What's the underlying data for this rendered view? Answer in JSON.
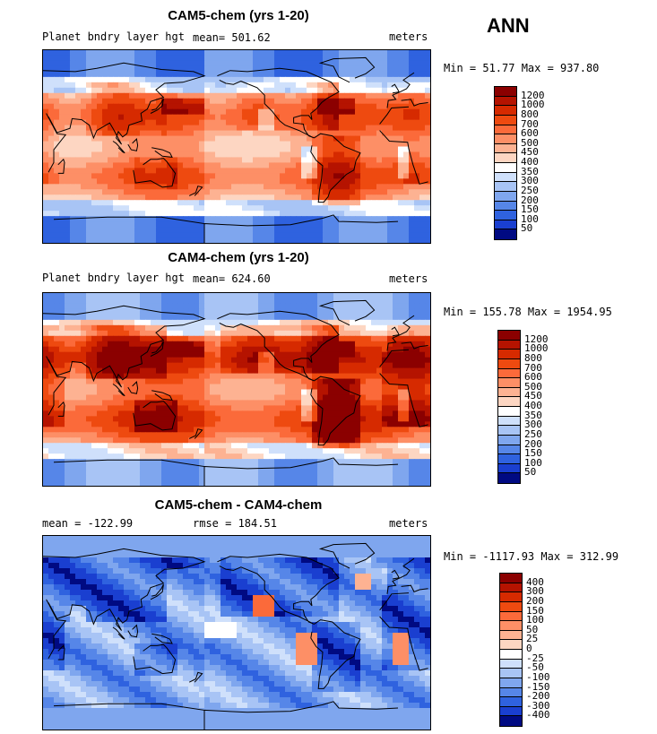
{
  "season": "ANN",
  "panels": [
    {
      "title": "CAM5-chem (yrs 1-20)",
      "left_label": "Planet bndry layer hgt",
      "mean_text": "mean= 501.62",
      "units": "meters",
      "minmax": "Min =  51.77 Max = 937.80",
      "scheme": "pos",
      "colorbar": {
        "labels": [
          "1200",
          "1000",
          "800",
          "700",
          "600",
          "500",
          "450",
          "400",
          "350",
          "300",
          "250",
          "200",
          "150",
          "100",
          "50"
        ],
        "colors": [
          "#8b0000",
          "#b51300",
          "#d62a00",
          "#ee4a10",
          "#fb6a3a",
          "#fd8f66",
          "#fdb292",
          "#fdd6c2",
          "#ffffff",
          "#cfe0fb",
          "#a8c4f5",
          "#7fa6ee",
          "#5686e8",
          "#2f62df",
          "#1a3fd0",
          "#000a82"
        ]
      }
    },
    {
      "title": "CAM4-chem (yrs 1-20)",
      "left_label": "Planet bndry layer hgt",
      "mean_text": "mean= 624.60",
      "units": "meters",
      "minmax": "Min = 155.78 Max = 1954.95",
      "scheme": "pos",
      "colorbar": {
        "labels": [
          "1200",
          "1000",
          "800",
          "700",
          "600",
          "500",
          "450",
          "400",
          "350",
          "300",
          "250",
          "200",
          "150",
          "100",
          "50"
        ],
        "colors": [
          "#8b0000",
          "#b51300",
          "#d62a00",
          "#ee4a10",
          "#fb6a3a",
          "#fd8f66",
          "#fdb292",
          "#fdd6c2",
          "#ffffff",
          "#cfe0fb",
          "#a8c4f5",
          "#7fa6ee",
          "#5686e8",
          "#2f62df",
          "#1a3fd0",
          "#000a82"
        ]
      }
    },
    {
      "title": "CAM5-chem - CAM4-chem",
      "left_label": "mean = -122.99",
      "mean_text": "rmse = 184.51",
      "units": "meters",
      "minmax": "Min = -1117.93 Max = 312.99",
      "scheme": "diff",
      "colorbar": {
        "labels": [
          "400",
          "300",
          "200",
          "150",
          "100",
          "50",
          "25",
          "0",
          "-25",
          "-50",
          "-100",
          "-150",
          "-200",
          "-300",
          "-400"
        ],
        "colors": [
          "#8b0000",
          "#b51300",
          "#d62a00",
          "#ee4a10",
          "#fb6a3a",
          "#fd8f66",
          "#fdb292",
          "#fdd6c2",
          "#ffffff",
          "#cfe0fb",
          "#a8c4f5",
          "#7fa6ee",
          "#5686e8",
          "#2f62df",
          "#1a3fd0",
          "#000a82"
        ]
      }
    }
  ]
}
